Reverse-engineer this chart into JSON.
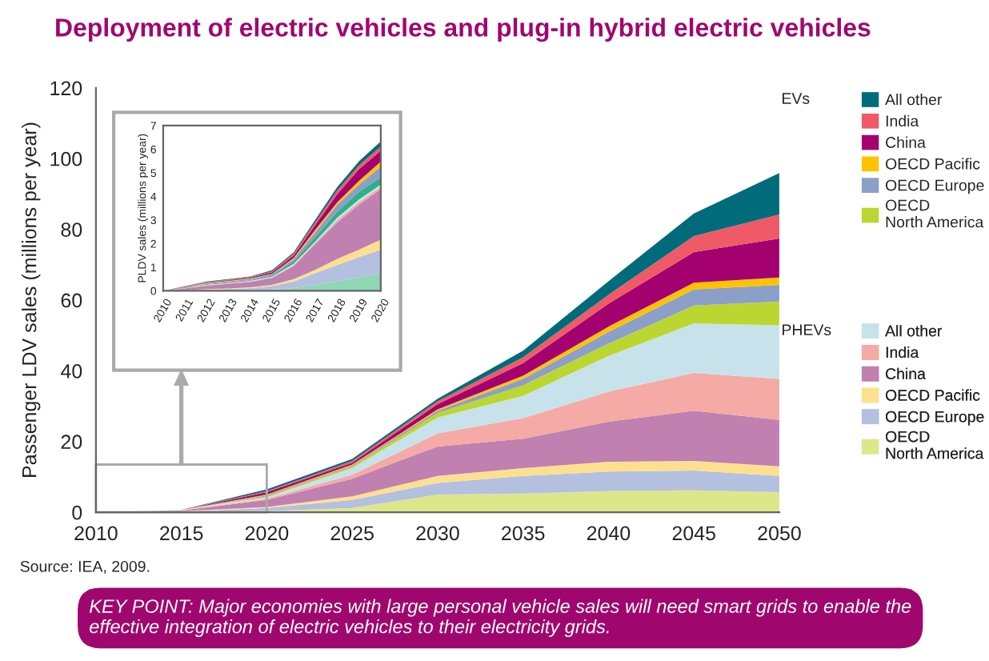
{
  "chart_data": [
    {
      "type": "area",
      "stacked": true,
      "title": "Deployment of electric vehicles and plug-in hybrid electric vehicles",
      "ylabel": "Passenger LDV sales (millions per year)",
      "x": [
        2010,
        2015,
        2020,
        2025,
        2030,
        2035,
        2040,
        2045,
        2050
      ],
      "xlim": [
        2010,
        2050
      ],
      "xticks": [
        2010,
        2015,
        2020,
        2025,
        2030,
        2035,
        2040,
        2045,
        2050
      ],
      "ylim": [
        0,
        120
      ],
      "yticks": [
        0,
        20,
        40,
        60,
        80,
        100,
        120
      ],
      "grid": false,
      "legend": "right",
      "series": [
        {
          "name": "OECD\nNorth America",
          "color": "#dce78a",
          "values": [
            0,
            0.1,
            0.3,
            1.2,
            5.0,
            5.3,
            6.0,
            6.2,
            5.7
          ]
        },
        {
          "name": "OECD Europe",
          "color": "#b4c0df",
          "values": [
            0,
            0.1,
            0.9,
            2.3,
            3.3,
            5.0,
            5.5,
            5.6,
            4.6
          ]
        },
        {
          "name": "OECD Pacific",
          "color": "#fde08f",
          "values": [
            0,
            0.1,
            0.3,
            1.0,
            2.0,
            2.2,
            2.8,
            2.7,
            2.7
          ]
        },
        {
          "name": "China",
          "color": "#c080b0",
          "values": [
            0,
            0.2,
            2.0,
            5.0,
            8.3,
            8.3,
            11.3,
            14.2,
            13.1
          ]
        },
        {
          "name": "India",
          "color": "#f5aaa5",
          "values": [
            0,
            0.1,
            0.3,
            1.1,
            3.7,
            5.8,
            8.5,
            10.7,
            11.6
          ]
        },
        {
          "name": "All other",
          "color": "#c8e2ec",
          "values": [
            0,
            0.1,
            0.4,
            1.9,
            4.5,
            6.3,
            10.1,
            14.0,
            15.2
          ]
        },
        {
          "name": "OECD\nNorth America",
          "color": "#bcd631",
          "values": [
            0,
            0,
            0.3,
            0.5,
            1.3,
            3.0,
            3.5,
            5.1,
            6.7
          ]
        },
        {
          "name": "OECD Europe",
          "color": "#8b9fc9",
          "values": [
            0,
            0,
            0.3,
            0.3,
            0.6,
            1.8,
            3.3,
            4.5,
            4.7
          ]
        },
        {
          "name": "OECD Pacific",
          "color": "#fdc300",
          "values": [
            0,
            0,
            0.2,
            0.2,
            0.4,
            0.9,
            1.5,
            1.9,
            2.1
          ]
        },
        {
          "name": "China",
          "color": "#a5006f",
          "values": [
            0,
            0,
            0.7,
            0.5,
            1.5,
            3.6,
            6.5,
            8.7,
            11.0
          ]
        },
        {
          "name": "India",
          "color": "#ef5a66",
          "values": [
            0,
            0,
            0.3,
            0.5,
            0.8,
            1.6,
            2.5,
            4.5,
            6.8
          ]
        },
        {
          "name": "All other",
          "color": "#006b7a",
          "values": [
            0,
            0,
            0.5,
            0.6,
            0.7,
            1.9,
            3.8,
            6.4,
            11.7
          ]
        }
      ],
      "annotations": [
        "EVs",
        "PHEVs",
        "Source: IEA, 2009.",
        "KEY POINT: Major economies with large personal vehicle sales will need smart grids to enable the effective integration of electric vehicles to their electricity grids."
      ]
    },
    {
      "type": "area",
      "stacked": true,
      "ylabel": "PLDV sales (millions per year)",
      "x": [
        2010,
        2011,
        2012,
        2013,
        2014,
        2015,
        2016,
        2017,
        2018,
        2019,
        2020
      ],
      "xlim": [
        2010,
        2020
      ],
      "xticks": [
        2010,
        2011,
        2012,
        2013,
        2014,
        2015,
        2016,
        2017,
        2018,
        2019,
        2020
      ],
      "ylim": [
        0,
        7
      ],
      "yticks": [
        0,
        1,
        2,
        3,
        4,
        5,
        6,
        7
      ],
      "grid": false,
      "series": [
        {
          "color": "#8fd6b4",
          "values": [
            0,
            0,
            0.01,
            0.02,
            0.03,
            0.05,
            0.12,
            0.25,
            0.4,
            0.57,
            0.74
          ]
        },
        {
          "color": "#b4c0df",
          "values": [
            0,
            0.02,
            0.04,
            0.06,
            0.09,
            0.15,
            0.28,
            0.5,
            0.7,
            0.86,
            1.0
          ]
        },
        {
          "color": "#fde08f",
          "values": [
            0,
            0.01,
            0.02,
            0.02,
            0.03,
            0.05,
            0.1,
            0.15,
            0.25,
            0.31,
            0.43
          ]
        },
        {
          "color": "#c080b0",
          "values": [
            0,
            0.07,
            0.15,
            0.2,
            0.23,
            0.3,
            0.55,
            1.1,
            1.55,
            1.92,
            2.13
          ]
        },
        {
          "color": "#f5aaa5",
          "values": [
            0,
            0.01,
            0.02,
            0.02,
            0.02,
            0.02,
            0.05,
            0.05,
            0.1,
            0.11,
            0.1
          ]
        },
        {
          "color": "#c8e2ec",
          "values": [
            0,
            0.01,
            0.02,
            0.02,
            0.02,
            0.03,
            0.05,
            0.05,
            0.1,
            0.1,
            0.1
          ]
        },
        {
          "color": "#2fb08a",
          "values": [
            0,
            0.02,
            0.03,
            0.03,
            0.03,
            0.05,
            0.1,
            0.2,
            0.25,
            0.33,
            0.3
          ]
        },
        {
          "color": "#8b9fc9",
          "values": [
            0,
            0.01,
            0.03,
            0.03,
            0.05,
            0.05,
            0.1,
            0.2,
            0.3,
            0.3,
            0.46
          ]
        },
        {
          "color": "#fdc300",
          "values": [
            0,
            0.01,
            0.02,
            0.02,
            0.02,
            0.02,
            0.05,
            0.1,
            0.1,
            0.16,
            0.21
          ]
        },
        {
          "color": "#a5006f",
          "values": [
            0,
            0.02,
            0.02,
            0.03,
            0.04,
            0.06,
            0.1,
            0.2,
            0.35,
            0.49,
            0.47
          ]
        },
        {
          "color": "#ef5a66",
          "values": [
            0,
            0.01,
            0.02,
            0.02,
            0.03,
            0.04,
            0.08,
            0.12,
            0.15,
            0.17,
            0.18
          ]
        },
        {
          "color": "#006b7a",
          "values": [
            0,
            0.01,
            0.02,
            0.03,
            0.02,
            0.05,
            0.05,
            0.1,
            0.15,
            0.17,
            0.21
          ]
        }
      ]
    }
  ]
}
